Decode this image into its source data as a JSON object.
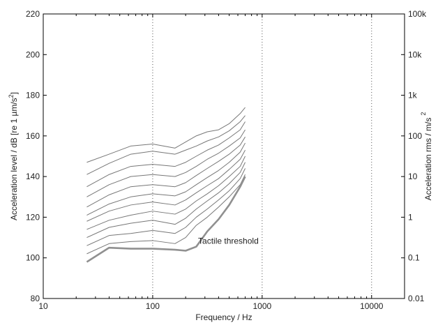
{
  "chart_data": {
    "type": "line",
    "title": "",
    "xlabel": "Frequency / Hz",
    "ylabel_left": "Acceleration level / dB [re 1 µm/s",
    "ylabel_left_sup": "2",
    "ylabel_left_tail": "]",
    "ylabel_right": "Acceleration rms / m/s",
    "ylabel_right_sup": "2",
    "x_scale": "log",
    "xlim": [
      10,
      20000
    ],
    "ylim": [
      80,
      220
    ],
    "x_ticks": [
      10,
      100,
      1000,
      10000
    ],
    "x_tick_labels": [
      "10",
      "100",
      "1000",
      "10000"
    ],
    "y_ticks": [
      80,
      100,
      120,
      140,
      160,
      180,
      200,
      220
    ],
    "y_tick_labels": [
      "80",
      "100",
      "120",
      "140",
      "160",
      "180",
      "200",
      "220"
    ],
    "right_ticks_db": [
      80,
      100,
      120,
      140,
      160,
      180,
      200,
      220
    ],
    "right_tick_labels": [
      "0.01",
      "0.1",
      "1",
      "10",
      "100",
      "1k",
      "10k",
      "100k"
    ],
    "grid": "vertical dotted at 100, 1000, 10000 Hz",
    "x": [
      25,
      40,
      63,
      100,
      160,
      200,
      250,
      315,
      400,
      500,
      630,
      700
    ],
    "series": [
      {
        "values": [
          147,
          151,
          155,
          156,
          154,
          157,
          160,
          162,
          163,
          166,
          171,
          174
        ]
      },
      {
        "values": [
          141,
          146.5,
          151,
          152.5,
          151,
          153,
          155,
          157.5,
          159.5,
          162.5,
          167,
          170
        ]
      },
      {
        "values": [
          135,
          141,
          145,
          146,
          145,
          147,
          150,
          153,
          155.5,
          159,
          163,
          167
        ]
      },
      {
        "values": [
          130,
          136,
          140,
          141,
          140,
          142,
          145,
          148.5,
          151.5,
          155,
          159,
          163
        ]
      },
      {
        "values": [
          125,
          131,
          135,
          136,
          135,
          137,
          140.5,
          144,
          147.5,
          151,
          155.5,
          159.5
        ]
      },
      {
        "values": [
          121,
          126.5,
          130,
          131.5,
          130.5,
          132.5,
          136,
          139.5,
          143,
          147,
          152,
          156.5
        ]
      },
      {
        "values": [
          118,
          123,
          126,
          127.5,
          126,
          128.5,
          132,
          135.5,
          139,
          143.5,
          148.5,
          153
        ]
      },
      {
        "values": [
          114,
          118.5,
          121,
          123,
          121.5,
          124,
          128,
          131.5,
          135.5,
          140,
          145,
          150
        ]
      },
      {
        "values": [
          110,
          115,
          117,
          118.5,
          116.5,
          119.5,
          124,
          128,
          132,
          136.5,
          142,
          147
        ]
      },
      {
        "values": [
          106,
          111,
          112,
          113.5,
          112,
          115,
          120,
          124,
          128.5,
          133,
          139,
          144
        ]
      },
      {
        "values": [
          102,
          107,
          108,
          108.5,
          107,
          110,
          116,
          120,
          125,
          130,
          136,
          141
        ]
      },
      {
        "name": "Tactile threshold",
        "emphasis": true,
        "values": [
          98,
          105,
          104.5,
          104.5,
          104,
          103.5,
          105.5,
          113,
          119,
          126,
          135,
          140
        ]
      }
    ],
    "annotations": [
      {
        "text": "Tactile threshold",
        "x": 260,
        "y": 107
      }
    ],
    "colors": {
      "series": "#777777",
      "threshold": "#909090",
      "axis": "#000000",
      "grid": "#555555"
    }
  }
}
